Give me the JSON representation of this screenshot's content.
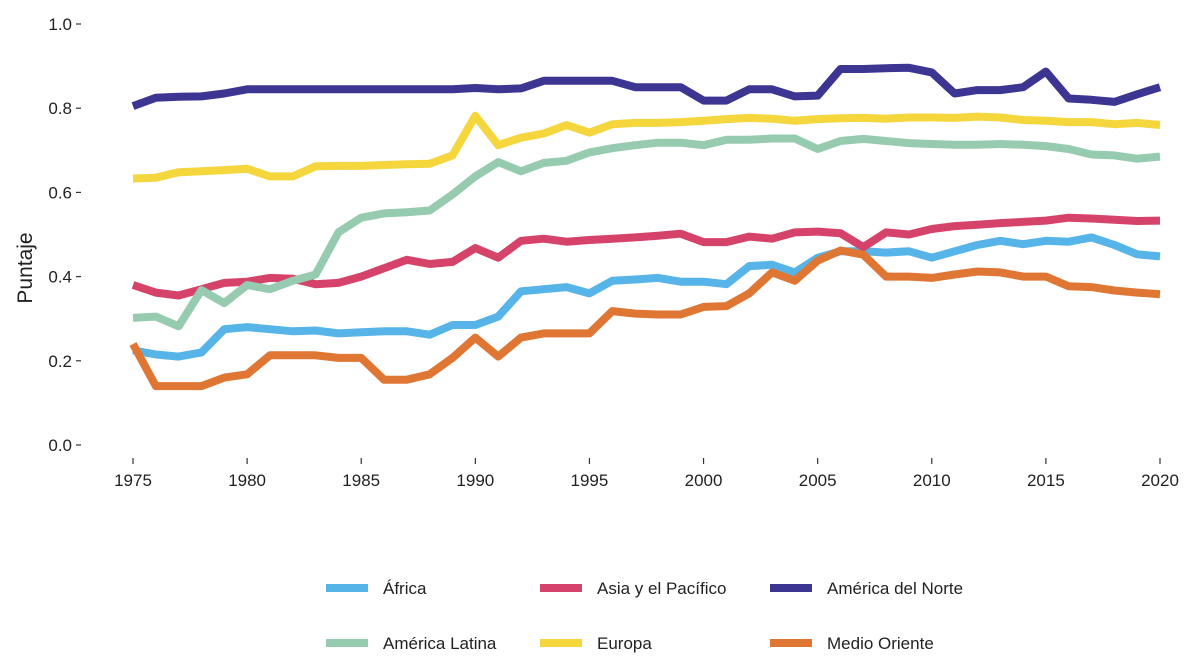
{
  "chart_data": {
    "type": "line",
    "title": "",
    "xlabel": "",
    "ylabel": "Puntaje",
    "xlim": [
      1975,
      2020
    ],
    "ylim": [
      0.0,
      1.0
    ],
    "x_ticks": [
      1975,
      1980,
      1985,
      1990,
      1995,
      2000,
      2005,
      2010,
      2015,
      2020
    ],
    "y_ticks": [
      "0.0",
      "0.2",
      "0.4",
      "0.6",
      "0.8",
      "1.0"
    ],
    "grid": false,
    "legend_position": "bottom",
    "x": [
      1975,
      1976,
      1977,
      1978,
      1979,
      1980,
      1981,
      1982,
      1983,
      1984,
      1985,
      1986,
      1987,
      1988,
      1989,
      1990,
      1991,
      1992,
      1993,
      1994,
      1995,
      1996,
      1997,
      1998,
      1999,
      2000,
      2001,
      2002,
      2003,
      2004,
      2005,
      2006,
      2007,
      2008,
      2009,
      2010,
      2011,
      2012,
      2013,
      2014,
      2015,
      2016,
      2017,
      2018,
      2019,
      2020
    ],
    "series": [
      {
        "name": "África",
        "color": "#56B4E9",
        "values": [
          0.225,
          0.215,
          0.21,
          0.22,
          0.275,
          0.28,
          0.275,
          0.27,
          0.272,
          0.265,
          0.268,
          0.27,
          0.27,
          0.262,
          0.285,
          0.285,
          0.305,
          0.365,
          0.37,
          0.375,
          0.36,
          0.39,
          0.393,
          0.397,
          0.388,
          0.388,
          0.382,
          0.425,
          0.428,
          0.41,
          0.445,
          0.46,
          0.46,
          0.457,
          0.46,
          0.445,
          0.46,
          0.475,
          0.485,
          0.477,
          0.485,
          0.483,
          0.493,
          0.475,
          0.453,
          0.448
        ]
      },
      {
        "name": "Asia y el Pacífico",
        "color": "#D6436A",
        "values": [
          0.38,
          0.362,
          0.355,
          0.37,
          0.385,
          0.388,
          0.397,
          0.395,
          0.382,
          0.385,
          0.4,
          0.42,
          0.44,
          0.43,
          0.435,
          0.468,
          0.445,
          0.485,
          0.49,
          0.483,
          0.487,
          0.49,
          0.493,
          0.497,
          0.502,
          0.482,
          0.482,
          0.495,
          0.49,
          0.505,
          0.507,
          0.503,
          0.47,
          0.505,
          0.5,
          0.513,
          0.52,
          0.523,
          0.527,
          0.53,
          0.533,
          0.54,
          0.538,
          0.535,
          0.532,
          0.533
        ]
      },
      {
        "name": "América del Norte",
        "color": "#3D3592",
        "values": [
          0.805,
          0.825,
          0.827,
          0.828,
          0.835,
          0.845,
          0.845,
          0.845,
          0.845,
          0.845,
          0.845,
          0.845,
          0.845,
          0.845,
          0.845,
          0.848,
          0.845,
          0.847,
          0.865,
          0.865,
          0.865,
          0.865,
          0.85,
          0.85,
          0.85,
          0.818,
          0.818,
          0.845,
          0.845,
          0.828,
          0.83,
          0.893,
          0.893,
          0.895,
          0.896,
          0.885,
          0.835,
          0.843,
          0.843,
          0.85,
          0.887,
          0.823,
          0.82,
          0.815,
          0.833,
          0.85
        ]
      },
      {
        "name": "América Latina",
        "color": "#96CBAF",
        "values": [
          0.302,
          0.305,
          0.282,
          0.368,
          0.337,
          0.38,
          0.37,
          0.39,
          0.405,
          0.505,
          0.54,
          0.55,
          0.553,
          0.557,
          0.595,
          0.638,
          0.672,
          0.65,
          0.67,
          0.675,
          0.695,
          0.705,
          0.712,
          0.718,
          0.718,
          0.712,
          0.725,
          0.725,
          0.728,
          0.728,
          0.703,
          0.722,
          0.727,
          0.722,
          0.717,
          0.715,
          0.713,
          0.713,
          0.715,
          0.713,
          0.71,
          0.703,
          0.69,
          0.688,
          0.68,
          0.685
        ]
      },
      {
        "name": "Europa",
        "color": "#F5D63D",
        "values": [
          0.633,
          0.635,
          0.648,
          0.65,
          0.653,
          0.656,
          0.638,
          0.638,
          0.662,
          0.663,
          0.663,
          0.665,
          0.667,
          0.668,
          0.688,
          0.782,
          0.712,
          0.73,
          0.74,
          0.76,
          0.742,
          0.762,
          0.765,
          0.765,
          0.767,
          0.77,
          0.774,
          0.777,
          0.775,
          0.77,
          0.774,
          0.776,
          0.777,
          0.775,
          0.778,
          0.778,
          0.777,
          0.78,
          0.778,
          0.772,
          0.77,
          0.767,
          0.767,
          0.762,
          0.765,
          0.76
        ]
      },
      {
        "name": "Medio Oriente",
        "color": "#E07634",
        "values": [
          0.24,
          0.14,
          0.14,
          0.14,
          0.16,
          0.168,
          0.213,
          0.213,
          0.213,
          0.207,
          0.207,
          0.155,
          0.155,
          0.168,
          0.207,
          0.255,
          0.21,
          0.255,
          0.265,
          0.265,
          0.265,
          0.318,
          0.312,
          0.31,
          0.31,
          0.328,
          0.33,
          0.36,
          0.41,
          0.39,
          0.438,
          0.462,
          0.452,
          0.4,
          0.4,
          0.397,
          0.405,
          0.412,
          0.41,
          0.4,
          0.4,
          0.377,
          0.375,
          0.367,
          0.362,
          0.358
        ]
      }
    ]
  }
}
